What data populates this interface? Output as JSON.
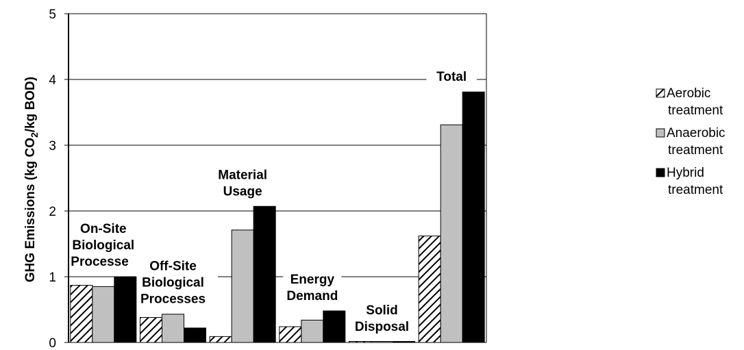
{
  "chart_data": {
    "type": "bar",
    "title": "",
    "xlabel": "",
    "ylabel_prefix": "GHG Emissions (kg CO",
    "ylabel_sub": "2",
    "ylabel_suffix": "/kg BOD)",
    "ylim": [
      0,
      5
    ],
    "yticks": [
      "0",
      "1",
      "2",
      "3",
      "4",
      "5"
    ],
    "grid": true,
    "legend_position": "right",
    "categories": [
      [
        "On-Site",
        "Biological",
        "Processes"
      ],
      [
        "Off-Site",
        "Biological",
        "Processes"
      ],
      [
        "Material",
        "Usage"
      ],
      [
        "Energy",
        "Demand"
      ],
      [
        "Solid",
        "Disposal"
      ],
      [
        "Total"
      ]
    ],
    "series": [
      {
        "name_lines": [
          "Aerobic",
          "treatment"
        ],
        "pattern": "hatched",
        "color": "#ffffff",
        "values": [
          0.87,
          0.38,
          0.09,
          0.24,
          0.0,
          1.62
        ]
      },
      {
        "name_lines": [
          "Anaerobic",
          "treatment"
        ],
        "pattern": "solid",
        "color": "#c0c0c0",
        "values": [
          0.85,
          0.43,
          1.71,
          0.34,
          0.01,
          3.31
        ]
      },
      {
        "name_lines": [
          "Hybrid",
          "treatment"
        ],
        "pattern": "solid",
        "color": "#000000",
        "values": [
          1.0,
          0.22,
          2.07,
          0.48,
          0.0,
          3.81
        ]
      }
    ]
  }
}
